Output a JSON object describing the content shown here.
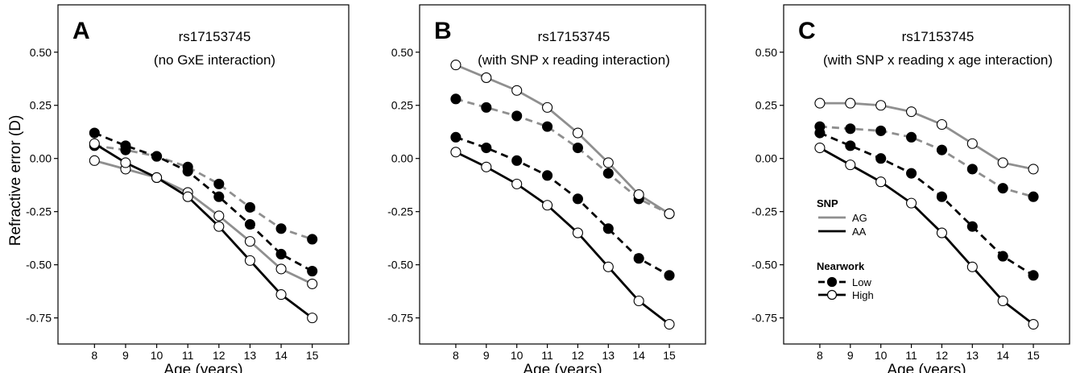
{
  "y_axis_label": "Refractive error (D)",
  "legend": {
    "snp_title": "SNP",
    "snp_items": [
      {
        "label": "AG",
        "color": "#8f8f8f"
      },
      {
        "label": "AA",
        "color": "#000000"
      }
    ],
    "nearwork_title": "Nearwork",
    "nearwork_items": [
      {
        "label": "Low",
        "marker": "filled",
        "dash": true
      },
      {
        "label": "High",
        "marker": "open",
        "dash": false
      }
    ]
  },
  "chart_data": [
    {
      "type": "line",
      "panel": "A",
      "title": "rs17153745",
      "subtitle": "(no GxE interaction)",
      "xlabel": "Age (years)",
      "ylabel": "Refractive error (D)",
      "x": [
        8,
        9,
        10,
        11,
        12,
        13,
        14,
        15
      ],
      "xlim": [
        7.5,
        15.5
      ],
      "ylim": [
        -0.85,
        0.7
      ],
      "yticks": [
        -0.75,
        -0.5,
        -0.25,
        0,
        0.25,
        0.5
      ],
      "ytick_labels": [
        "-0.75",
        "-0.50",
        "-0.25",
        "0.00",
        "0.25",
        "0.50"
      ],
      "series": [
        {
          "snp": "AG",
          "nearwork": "Low",
          "color": "#8f8f8f",
          "dashed": true,
          "marker": "filled",
          "values": [
            0.06,
            0.04,
            0.01,
            -0.04,
            -0.12,
            -0.23,
            -0.33,
            -0.38
          ]
        },
        {
          "snp": "AA",
          "nearwork": "Low",
          "color": "#000000",
          "dashed": true,
          "marker": "filled",
          "values": [
            0.12,
            0.06,
            0.01,
            -0.06,
            -0.18,
            -0.31,
            -0.45,
            -0.53
          ]
        },
        {
          "snp": "AG",
          "nearwork": "High",
          "color": "#8f8f8f",
          "dashed": false,
          "marker": "open",
          "values": [
            -0.01,
            -0.05,
            -0.09,
            -0.16,
            -0.27,
            -0.39,
            -0.52,
            -0.59
          ]
        },
        {
          "snp": "AA",
          "nearwork": "High",
          "color": "#000000",
          "dashed": false,
          "marker": "open",
          "values": [
            0.07,
            -0.02,
            -0.09,
            -0.18,
            -0.32,
            -0.48,
            -0.64,
            -0.75
          ]
        }
      ]
    },
    {
      "type": "line",
      "panel": "B",
      "title": "rs17153745",
      "subtitle": "(with SNP x reading interaction)",
      "xlabel": "Age (years)",
      "ylabel": "",
      "x": [
        8,
        9,
        10,
        11,
        12,
        13,
        14,
        15
      ],
      "xlim": [
        7.5,
        15.5
      ],
      "ylim": [
        -0.85,
        0.7
      ],
      "yticks": [
        -0.75,
        -0.5,
        -0.25,
        0,
        0.25,
        0.5
      ],
      "ytick_labels": [
        "-0.75",
        "-0.50",
        "-0.25",
        "0.00",
        "0.25",
        "0.50"
      ],
      "series": [
        {
          "snp": "AG",
          "nearwork": "Low",
          "color": "#8f8f8f",
          "dashed": true,
          "marker": "filled",
          "values": [
            0.28,
            0.24,
            0.2,
            0.15,
            0.05,
            -0.07,
            -0.19,
            -0.26
          ]
        },
        {
          "snp": "AA",
          "nearwork": "Low",
          "color": "#000000",
          "dashed": true,
          "marker": "filled",
          "values": [
            0.1,
            0.05,
            -0.01,
            -0.08,
            -0.19,
            -0.33,
            -0.47,
            -0.55
          ]
        },
        {
          "snp": "AG",
          "nearwork": "High",
          "color": "#8f8f8f",
          "dashed": false,
          "marker": "open",
          "values": [
            0.44,
            0.38,
            0.32,
            0.24,
            0.12,
            -0.02,
            -0.17,
            -0.26
          ]
        },
        {
          "snp": "AA",
          "nearwork": "High",
          "color": "#000000",
          "dashed": false,
          "marker": "open",
          "values": [
            0.03,
            -0.04,
            -0.12,
            -0.22,
            -0.35,
            -0.51,
            -0.67,
            -0.78
          ]
        }
      ]
    },
    {
      "type": "line",
      "panel": "C",
      "title": "rs17153745",
      "subtitle": "(with SNP x reading x age interaction)",
      "xlabel": "Age (years)",
      "ylabel": "",
      "x": [
        8,
        9,
        10,
        11,
        12,
        13,
        14,
        15
      ],
      "xlim": [
        7.5,
        15.5
      ],
      "ylim": [
        -0.85,
        0.7
      ],
      "yticks": [
        -0.75,
        -0.5,
        -0.25,
        0,
        0.25,
        0.5
      ],
      "ytick_labels": [
        "-0.75",
        "-0.50",
        "-0.25",
        "0.00",
        "0.25",
        "0.50"
      ],
      "series": [
        {
          "snp": "AG",
          "nearwork": "Low",
          "color": "#8f8f8f",
          "dashed": true,
          "marker": "filled",
          "values": [
            0.15,
            0.14,
            0.13,
            0.1,
            0.04,
            -0.05,
            -0.14,
            -0.18
          ]
        },
        {
          "snp": "AA",
          "nearwork": "Low",
          "color": "#000000",
          "dashed": true,
          "marker": "filled",
          "values": [
            0.12,
            0.06,
            0.0,
            -0.07,
            -0.18,
            -0.32,
            -0.46,
            -0.55
          ]
        },
        {
          "snp": "AG",
          "nearwork": "High",
          "color": "#8f8f8f",
          "dashed": false,
          "marker": "open",
          "values": [
            0.26,
            0.26,
            0.25,
            0.22,
            0.16,
            0.07,
            -0.02,
            -0.05
          ]
        },
        {
          "snp": "AA",
          "nearwork": "High",
          "color": "#000000",
          "dashed": false,
          "marker": "open",
          "values": [
            0.05,
            -0.03,
            -0.11,
            -0.21,
            -0.35,
            -0.51,
            -0.67,
            -0.78
          ]
        }
      ]
    }
  ]
}
